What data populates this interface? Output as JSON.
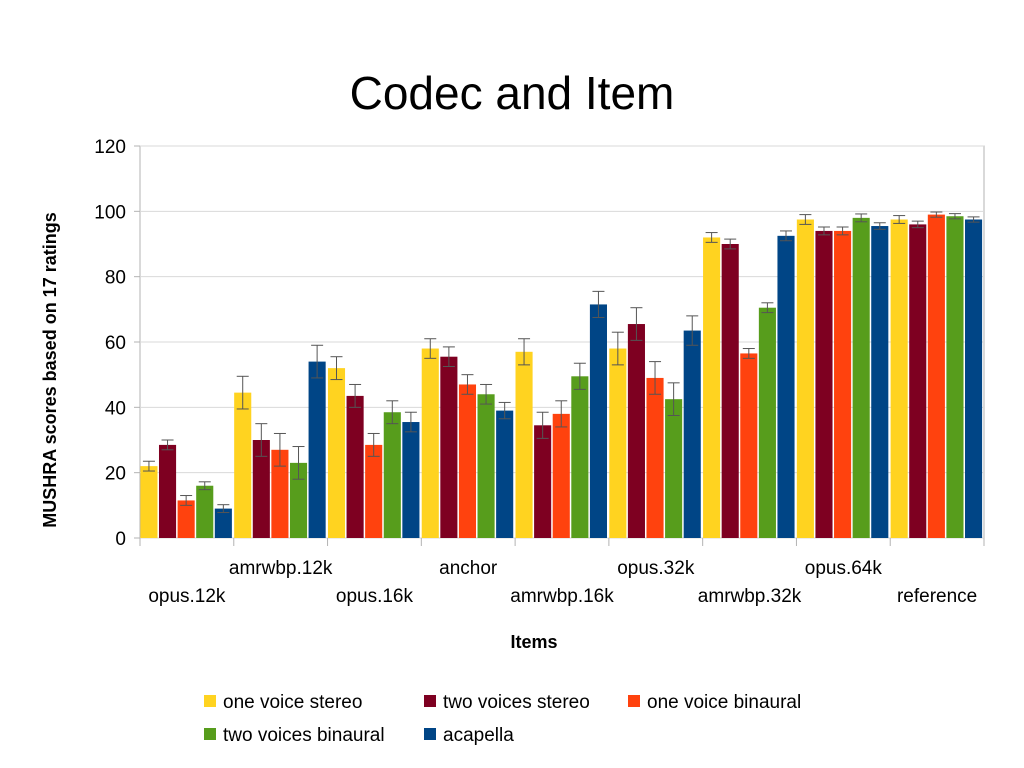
{
  "chart_data": {
    "type": "bar",
    "title": "Codec and Item",
    "xlabel": "Items",
    "ylabel": "MUSHRA scores based on 17 ratings",
    "ylim": [
      0,
      120
    ],
    "yticks": [
      0,
      20,
      40,
      60,
      80,
      100,
      120
    ],
    "grid": true,
    "legend_position": "bottom",
    "categories": [
      "opus.12k",
      "amrwbp.12k",
      "opus.16k",
      "anchor",
      "amrwbp.16k",
      "opus.32k",
      "amrwbp.32k",
      "opus.64k",
      "reference"
    ],
    "series": [
      {
        "name": "one voice stereo",
        "color": "#ffd320",
        "values": [
          22,
          44.5,
          52,
          58,
          57,
          58,
          92,
          97.5,
          97.5
        ],
        "errors": [
          1.5,
          5,
          3.5,
          3,
          4,
          5,
          1.5,
          1.5,
          1.2
        ]
      },
      {
        "name": "two voices stereo",
        "color": "#7e0021",
        "values": [
          28.5,
          30,
          43.5,
          55.5,
          34.5,
          65.5,
          90,
          94,
          96
        ],
        "errors": [
          1.5,
          5,
          3.5,
          3,
          4,
          5,
          1.5,
          1.2,
          1
        ]
      },
      {
        "name": "one voice binaural",
        "color": "#ff420e",
        "values": [
          11.5,
          27,
          28.5,
          47,
          38,
          49,
          56.5,
          94,
          99
        ],
        "errors": [
          1.5,
          5,
          3.5,
          3,
          4,
          5,
          1.5,
          1.2,
          0.8
        ]
      },
      {
        "name": "two voices binaural",
        "color": "#579d1c",
        "values": [
          16,
          23,
          38.5,
          44,
          49.5,
          42.5,
          70.5,
          98,
          98.5
        ],
        "errors": [
          1.2,
          5,
          3.5,
          3,
          4,
          5,
          1.5,
          1.2,
          0.8
        ]
      },
      {
        "name": "acapella",
        "color": "#004586",
        "values": [
          9,
          54,
          35.5,
          39,
          71.5,
          63.5,
          92.5,
          95.5,
          97.5
        ],
        "errors": [
          1.2,
          5,
          3,
          2.5,
          4,
          4.5,
          1.5,
          1,
          0.8
        ]
      }
    ]
  }
}
